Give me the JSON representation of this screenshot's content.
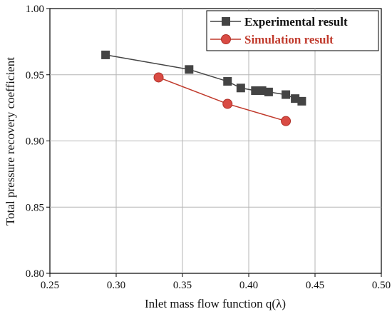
{
  "chart_data": {
    "type": "line",
    "xlabel": "Inlet mass flow function q(λ)",
    "ylabel": "Total pressure recovery coefficient",
    "xlim": [
      0.25,
      0.5
    ],
    "ylim": [
      0.8,
      1.0
    ],
    "xticks": [
      0.25,
      0.3,
      0.35,
      0.4,
      0.45,
      0.5
    ],
    "yticks": [
      0.8,
      0.85,
      0.9,
      0.95,
      1.0
    ],
    "xtick_labels": [
      "0.25",
      "0.30",
      "0.35",
      "0.40",
      "0.45",
      "0.50"
    ],
    "ytick_labels": [
      "0.80",
      "0.85",
      "0.90",
      "0.95",
      "1.00"
    ],
    "grid": true,
    "legend_position": "top-right",
    "series": [
      {
        "name": "Experimental result",
        "marker": "square",
        "color": "#444444",
        "x": [
          0.292,
          0.355,
          0.384,
          0.394,
          0.405,
          0.41,
          0.415,
          0.428,
          0.435,
          0.44
        ],
        "y": [
          0.965,
          0.954,
          0.945,
          0.94,
          0.938,
          0.938,
          0.937,
          0.935,
          0.932,
          0.93
        ]
      },
      {
        "name": "Simulation result",
        "marker": "circle",
        "color": "#c0392b",
        "x": [
          0.332,
          0.384,
          0.428
        ],
        "y": [
          0.948,
          0.928,
          0.915
        ]
      }
    ]
  }
}
